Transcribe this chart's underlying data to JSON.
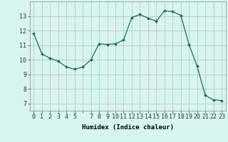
{
  "x": [
    0,
    1,
    2,
    3,
    4,
    5,
    6,
    7,
    8,
    9,
    10,
    11,
    12,
    13,
    14,
    15,
    16,
    17,
    18,
    19,
    20,
    21,
    22,
    23
  ],
  "y": [
    11.8,
    10.4,
    10.1,
    9.9,
    9.5,
    9.35,
    9.5,
    10.0,
    11.1,
    11.05,
    11.1,
    11.35,
    12.9,
    13.1,
    12.85,
    12.65,
    13.35,
    13.3,
    13.05,
    11.05,
    9.55,
    7.55,
    7.25,
    7.2
  ],
  "line_color": "#1a6b5a",
  "marker": "D",
  "marker_size": 2.0,
  "bg_color": "#d6f5f0",
  "grid_color": "#c4b8b8",
  "xlabel": "Humidex (Indice chaleur)",
  "xlabel_fontsize": 6.5,
  "xtick_labels": [
    "0",
    "1",
    "2",
    "3",
    "4",
    "5",
    "",
    "7",
    "8",
    "9",
    "10",
    "11",
    "12",
    "13",
    "14",
    "15",
    "16",
    "17",
    "18",
    "19",
    "20",
    "21",
    "22",
    "23"
  ],
  "ytick_values": [
    7,
    8,
    9,
    10,
    11,
    12,
    13
  ],
  "ylim": [
    6.5,
    14.0
  ],
  "xlim": [
    -0.5,
    23.5
  ],
  "tick_fontsize": 6.0,
  "spine_color": "#888888",
  "linewidth": 0.9
}
